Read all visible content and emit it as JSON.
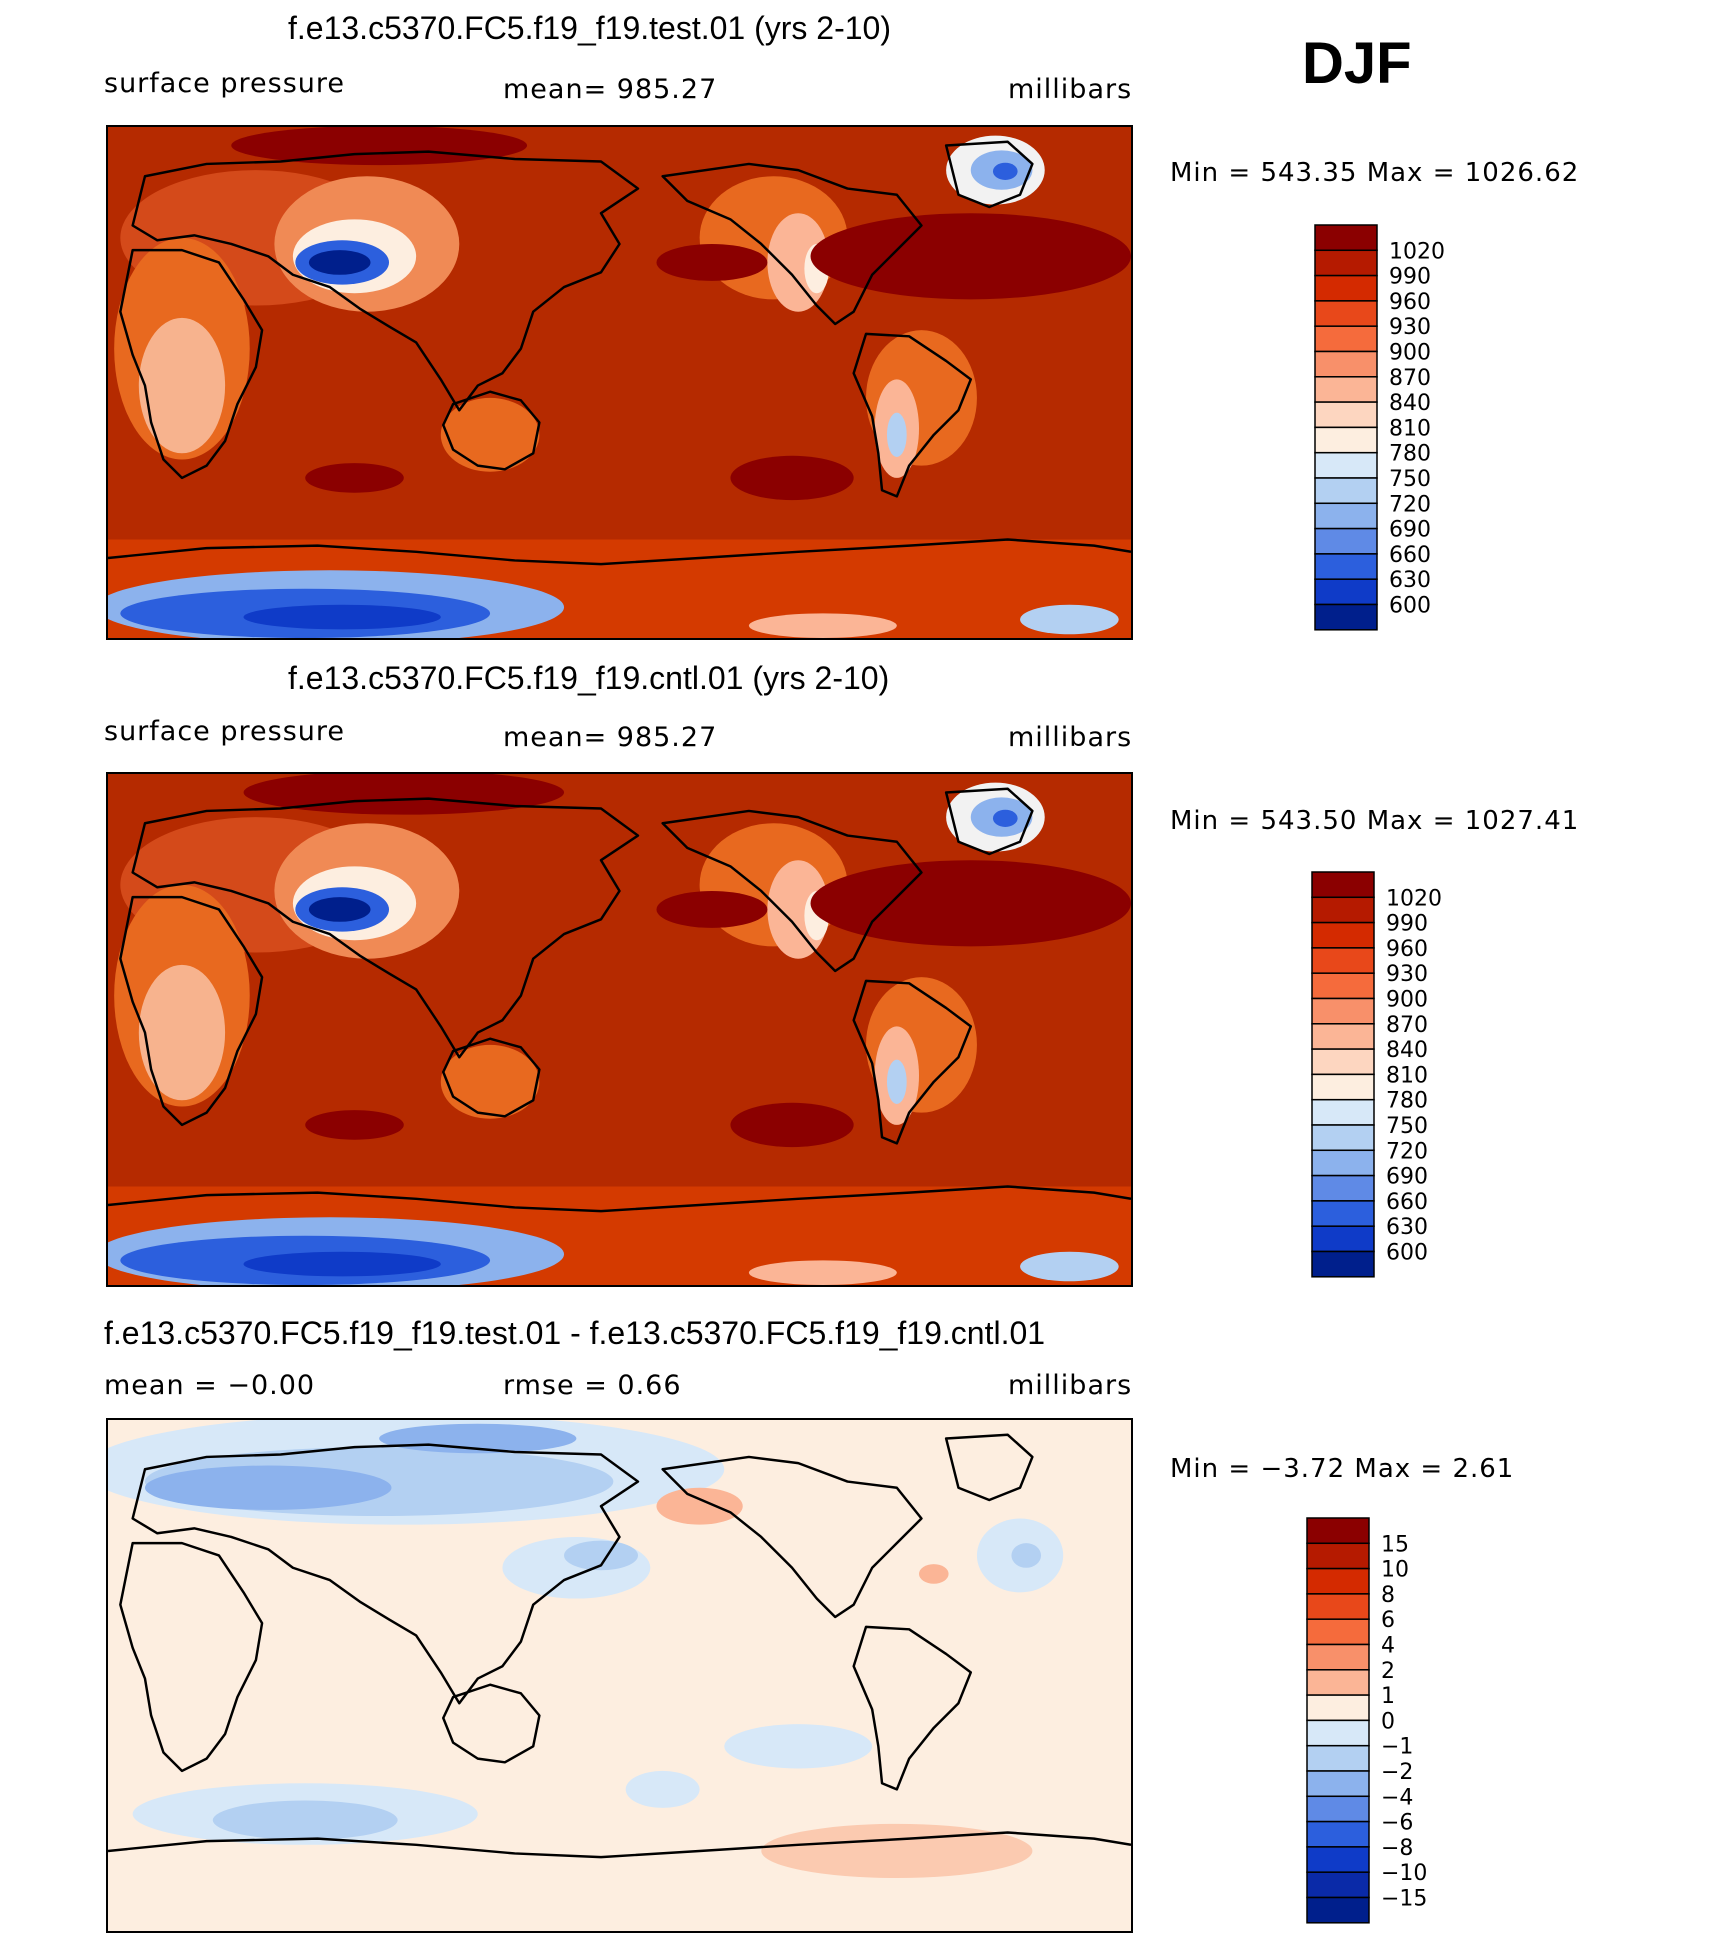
{
  "season": "DJF",
  "panels": [
    {
      "title": "f.e13.c5370.FC5.f19_f19.test.01 (yrs 2-10)",
      "left_label": "surface pressure",
      "center_label": "mean= 985.27",
      "units": "millibars",
      "minmax": "Min = 543.35 Max = 1026.62",
      "colorbar_labels": [
        "1020",
        "990",
        "960",
        "930",
        "900",
        "870",
        "840",
        "810",
        "780",
        "750",
        "720",
        "690",
        "660",
        "630",
        "600"
      ],
      "colorbar_colors": [
        "#8b0000",
        "#b51a00",
        "#d42a00",
        "#e8481a",
        "#f56b3c",
        "#f8906a",
        "#fbb596",
        "#fdd6c0",
        "#fdeee0",
        "#d7e8f8",
        "#b3d0f2",
        "#8cb2ed",
        "#5f8ae6",
        "#2c5fdd",
        "#0f3bc8",
        "#001f8c"
      ]
    },
    {
      "title": "f.e13.c5370.FC5.f19_f19.cntl.01 (yrs 2-10)",
      "left_label": "surface pressure",
      "center_label": "mean= 985.27",
      "units": "millibars",
      "minmax": "Min = 543.50 Max = 1027.41",
      "colorbar_labels": [
        "1020",
        "990",
        "960",
        "930",
        "900",
        "870",
        "840",
        "810",
        "780",
        "750",
        "720",
        "690",
        "660",
        "630",
        "600"
      ],
      "colorbar_colors": [
        "#8b0000",
        "#b51a00",
        "#d42a00",
        "#e8481a",
        "#f56b3c",
        "#f8906a",
        "#fbb596",
        "#fdd6c0",
        "#fdeee0",
        "#d7e8f8",
        "#b3d0f2",
        "#8cb2ed",
        "#5f8ae6",
        "#2c5fdd",
        "#0f3bc8",
        "#001f8c"
      ]
    },
    {
      "title": "f.e13.c5370.FC5.f19_f19.test.01 - f.e13.c5370.FC5.f19_f19.cntl.01",
      "left_label": "mean =   −0.00",
      "center_label": "rmse =    0.66",
      "units": "millibars",
      "minmax": "Min =  −3.72 Max =    2.61",
      "colorbar_labels": [
        "15",
        "10",
        "8",
        "6",
        "4",
        "2",
        "1",
        "0",
        "−1",
        "−2",
        "−4",
        "−6",
        "−8",
        "−10",
        "−15"
      ],
      "colorbar_colors": [
        "#8b0000",
        "#b51a00",
        "#d42a00",
        "#e8481a",
        "#f56b3c",
        "#f8906a",
        "#fbb596",
        "#fdeee0",
        "#d7e8f8",
        "#b3d0f2",
        "#8cb2ed",
        "#5f8ae6",
        "#2c5fdd",
        "#0f3bc8",
        "#0a2aa8",
        "#001f8c"
      ]
    }
  ],
  "chart_data": [
    {
      "type": "heatmap",
      "title": "f.e13.c5370.FC5.f19_f19.test.01 (yrs 2-10)",
      "variable": "surface pressure",
      "units": "millibars",
      "mean": 985.27,
      "min": 543.35,
      "max": 1026.62,
      "contour_levels": [
        600,
        630,
        660,
        690,
        720,
        750,
        780,
        810,
        840,
        870,
        900,
        930,
        960,
        990,
        1020
      ]
    },
    {
      "type": "heatmap",
      "title": "f.e13.c5370.FC5.f19_f19.cntl.01 (yrs 2-10)",
      "variable": "surface pressure",
      "units": "millibars",
      "mean": 985.27,
      "min": 543.5,
      "max": 1027.41,
      "contour_levels": [
        600,
        630,
        660,
        690,
        720,
        750,
        780,
        810,
        840,
        870,
        900,
        930,
        960,
        990,
        1020
      ]
    },
    {
      "type": "heatmap",
      "title": "f.e13.c5370.FC5.f19_f19.test.01 - f.e13.c5370.FC5.f19_f19.cntl.01",
      "units": "millibars",
      "mean": -0.0,
      "rmse": 0.66,
      "min": -3.72,
      "max": 2.61,
      "contour_levels": [
        -15,
        -10,
        -8,
        -6,
        -4,
        -2,
        -1,
        0,
        1,
        2,
        4,
        6,
        8,
        10,
        15
      ]
    }
  ]
}
